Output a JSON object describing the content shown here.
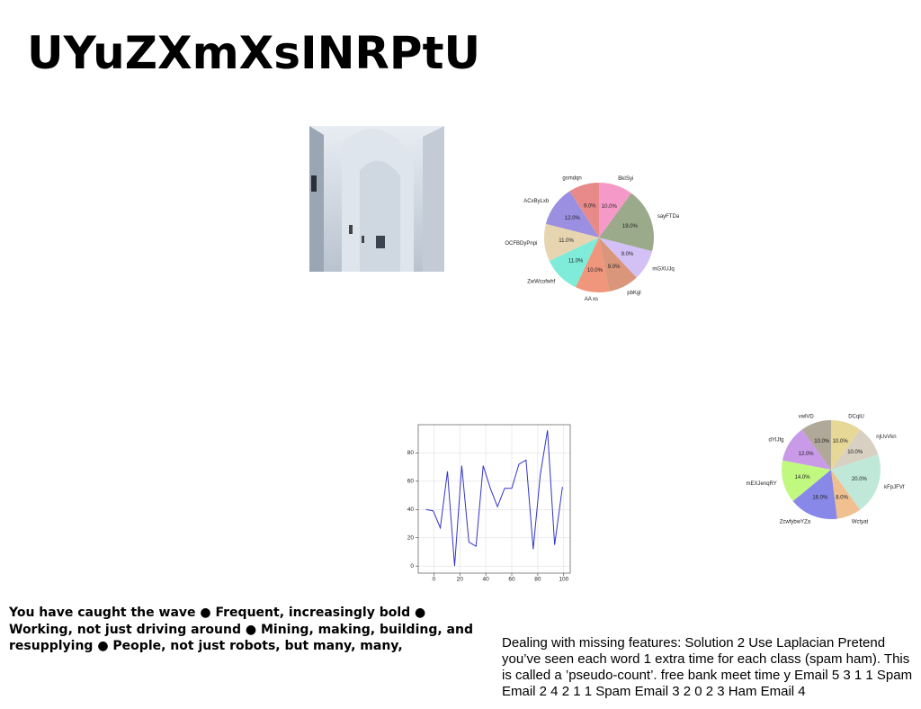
{
  "title": "UYuZXmXsINRPtU",
  "text_left": "You have caught the wave ● Frequent, increasingly bold ● Working, not just driving around ● Mining, making, building, and resupplying ● People, not just robots, but many, many,",
  "text_right": "Dealing with missing features: Solution 2 Use Laplacian Pretend you’ve seen each word 1 extra time for each class (spam ham). This is called a ’pseudo-count’. free bank meet time y Email 5 3 1 1 Spam Email 2 4 2 1 1 Spam Email 3 2 0 2 3 Ham Email 4",
  "chart_data": [
    {
      "type": "pie",
      "categories": [
        "gsmdqn",
        "ACxByLxb",
        "OCFBDyPnpi",
        "ZwWcofwhf",
        "AA xs",
        "pbKgl",
        "mGXUJq",
        "sayFTDa",
        "BkISyi"
      ],
      "values": [
        9,
        12,
        11,
        11,
        10,
        9,
        9,
        19,
        10
      ],
      "value_labels": [
        "9.0%",
        "12.0%",
        "11.0%",
        "11.0%",
        "10.0%",
        "9.0%",
        "9.0%",
        "19.0%",
        "10.0%"
      ],
      "colors": [
        "#e88a8a",
        "#9a8fe0",
        "#e6d5b0",
        "#7eecd8",
        "#f0967c",
        "#d9967a",
        "#d3c0f5",
        "#9aaa8a",
        "#f59ac8"
      ]
    },
    {
      "type": "line",
      "x": [
        -6,
        -0.5,
        5,
        10.5,
        16,
        21.5,
        27,
        32.5,
        38,
        43.5,
        49,
        54.5,
        60,
        65.5,
        71,
        76.5,
        82,
        87.5,
        93,
        99
      ],
      "series": [
        {
          "color": "#3333cc",
          "values": [
            40,
            39,
            27,
            67,
            0,
            71,
            17,
            14,
            71,
            55,
            42,
            55,
            55,
            72,
            75,
            12,
            65,
            96,
            15,
            56
          ]
        }
      ],
      "xlim": [
        -12,
        105
      ],
      "ylim": [
        -5,
        100
      ],
      "xticks": [
        0,
        20,
        40,
        60,
        80,
        100
      ],
      "yticks": [
        0,
        20,
        40,
        60,
        80
      ],
      "grid": true
    },
    {
      "type": "pie",
      "categories": [
        "vwlVD",
        "dYIJfg",
        "mEXJenqRY",
        "ZcwfybwYZa",
        "Wctyat",
        "kFpJFVf",
        "njUvVkn",
        "DCqlU"
      ],
      "values": [
        10,
        12,
        14,
        16,
        8,
        20,
        10,
        10
      ],
      "value_labels": [
        "10.0%",
        "12.0%",
        "14.0%",
        "16.0%",
        "8.0%",
        "20.0%",
        "10.0%",
        "10.0%"
      ],
      "colors": [
        "#b0a898",
        "#c89ae8",
        "#c0f880",
        "#8888e8",
        "#f0c090",
        "#c0e8d8",
        "#d8d0c0",
        "#e8d898"
      ]
    }
  ]
}
